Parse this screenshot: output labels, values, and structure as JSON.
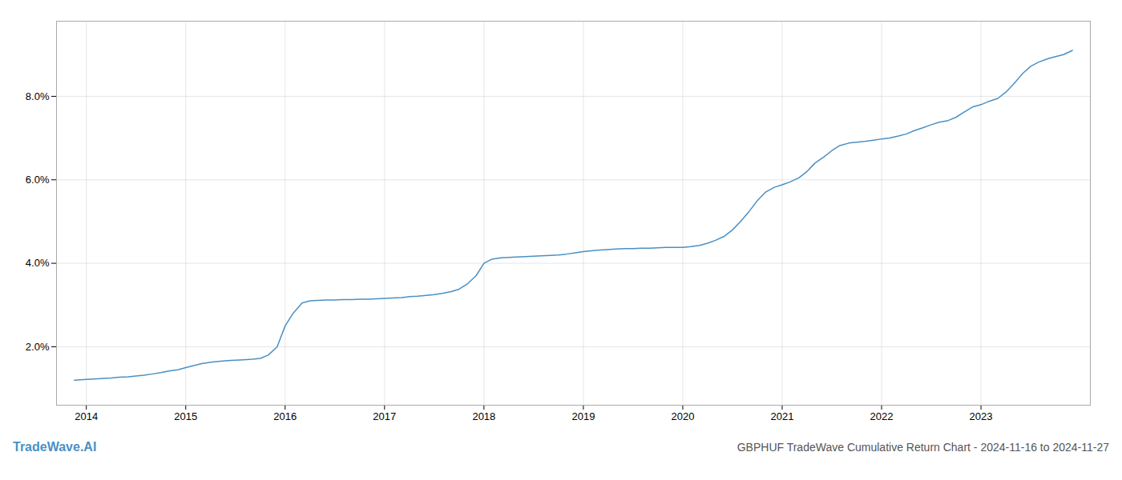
{
  "chart_data": {
    "type": "line",
    "title": "GBPHUF TradeWave Cumulative Return Chart - 2024-11-16 to 2024-11-27",
    "annotations": [
      "TradeWave.AI"
    ],
    "color": "#4a90c4",
    "grid": true,
    "x": [
      2013.88,
      2014.0,
      2014.08,
      2014.17,
      2014.25,
      2014.33,
      2014.42,
      2014.5,
      2014.58,
      2014.67,
      2014.75,
      2014.83,
      2014.92,
      2015.0,
      2015.08,
      2015.17,
      2015.25,
      2015.33,
      2015.42,
      2015.5,
      2015.58,
      2015.67,
      2015.75,
      2015.83,
      2015.92,
      2016.0,
      2016.08,
      2016.17,
      2016.25,
      2016.33,
      2016.42,
      2016.5,
      2016.58,
      2016.67,
      2016.75,
      2016.83,
      2016.92,
      2017.0,
      2017.08,
      2017.17,
      2017.25,
      2017.33,
      2017.42,
      2017.5,
      2017.58,
      2017.67,
      2017.75,
      2017.83,
      2017.92,
      2018.0,
      2018.08,
      2018.17,
      2018.25,
      2018.33,
      2018.42,
      2018.5,
      2018.58,
      2018.67,
      2018.75,
      2018.83,
      2018.92,
      2019.0,
      2019.08,
      2019.17,
      2019.25,
      2019.33,
      2019.42,
      2019.5,
      2019.58,
      2019.67,
      2019.75,
      2019.83,
      2019.92,
      2020.0,
      2020.08,
      2020.17,
      2020.25,
      2020.33,
      2020.42,
      2020.5,
      2020.58,
      2020.67,
      2020.75,
      2020.83,
      2020.92,
      2021.0,
      2021.08,
      2021.17,
      2021.25,
      2021.33,
      2021.42,
      2021.5,
      2021.58,
      2021.67,
      2021.75,
      2021.83,
      2021.92,
      2022.0,
      2022.08,
      2022.17,
      2022.25,
      2022.33,
      2022.42,
      2022.5,
      2022.58,
      2022.67,
      2022.75,
      2022.83,
      2022.92,
      2023.0,
      2023.08,
      2023.17,
      2023.25,
      2023.33,
      2023.42,
      2023.5,
      2023.58,
      2023.67,
      2023.75,
      2023.83,
      2023.92
    ],
    "values": [
      1.2,
      1.22,
      1.23,
      1.24,
      1.25,
      1.27,
      1.28,
      1.3,
      1.32,
      1.35,
      1.38,
      1.42,
      1.45,
      1.5,
      1.55,
      1.6,
      1.63,
      1.65,
      1.67,
      1.68,
      1.69,
      1.7,
      1.72,
      1.8,
      2.0,
      2.5,
      2.8,
      3.05,
      3.1,
      3.11,
      3.12,
      3.12,
      3.13,
      3.13,
      3.14,
      3.14,
      3.15,
      3.16,
      3.17,
      3.18,
      3.2,
      3.21,
      3.23,
      3.25,
      3.28,
      3.32,
      3.38,
      3.5,
      3.7,
      4.0,
      4.1,
      4.13,
      4.14,
      4.15,
      4.16,
      4.17,
      4.18,
      4.19,
      4.2,
      4.22,
      4.25,
      4.28,
      4.3,
      4.32,
      4.33,
      4.34,
      4.35,
      4.35,
      4.36,
      4.36,
      4.37,
      4.38,
      4.38,
      4.38,
      4.4,
      4.43,
      4.48,
      4.55,
      4.65,
      4.8,
      5.0,
      5.25,
      5.5,
      5.7,
      5.82,
      5.88,
      5.95,
      6.05,
      6.2,
      6.4,
      6.55,
      6.7,
      6.82,
      6.88,
      6.9,
      6.92,
      6.95,
      6.98,
      7.0,
      7.05,
      7.1,
      7.18,
      7.25,
      7.32,
      7.38,
      7.42,
      7.5,
      7.62,
      7.75,
      7.8,
      7.88,
      7.95,
      8.1,
      8.3,
      8.55,
      8.72,
      8.82,
      8.9,
      8.95,
      9.0,
      9.1
    ],
    "xlim": [
      2013.7,
      2024.1
    ],
    "xticks": [
      2014,
      2015,
      2016,
      2017,
      2018,
      2019,
      2020,
      2021,
      2022,
      2023
    ],
    "ylim": [
      0.6,
      9.8
    ],
    "yticks": [
      {
        "value": 2.0,
        "label": "2.0%"
      },
      {
        "value": 4.0,
        "label": "4.0%"
      },
      {
        "value": 6.0,
        "label": "6.0%"
      },
      {
        "value": 8.0,
        "label": "8.0%"
      }
    ]
  }
}
